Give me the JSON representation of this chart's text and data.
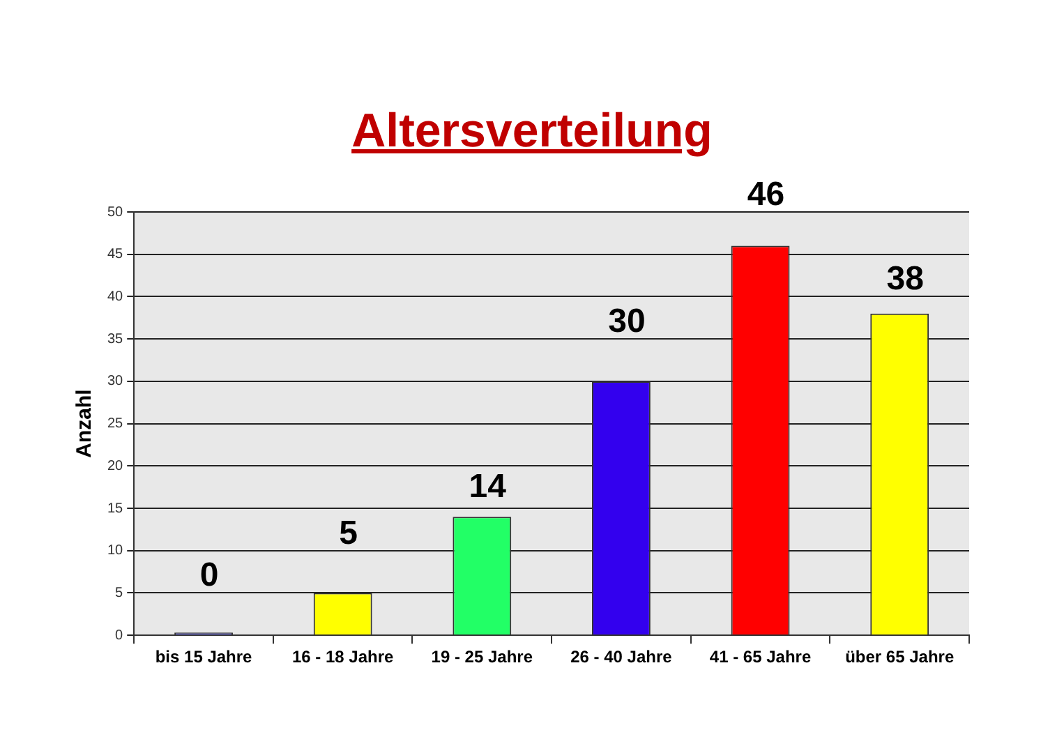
{
  "chart_data": {
    "type": "bar",
    "title": "Altersverteilung",
    "ylabel": "Anzahl",
    "categories": [
      "bis 15 Jahre",
      "16 - 18 Jahre",
      "19 - 25 Jahre",
      "26 - 40 Jahre",
      "41 - 65 Jahre",
      "über 65 Jahre"
    ],
    "values": [
      0,
      5,
      14,
      30,
      46,
      38
    ],
    "colors": [
      "#7070d8",
      "#ffff00",
      "#22ff66",
      "#3300ee",
      "#ff0000",
      "#ffff00"
    ],
    "ylim": [
      0,
      50
    ],
    "yticks": [
      0,
      5,
      10,
      15,
      20,
      25,
      30,
      35,
      40,
      45,
      50
    ],
    "grid": "y",
    "data_labels": true
  }
}
